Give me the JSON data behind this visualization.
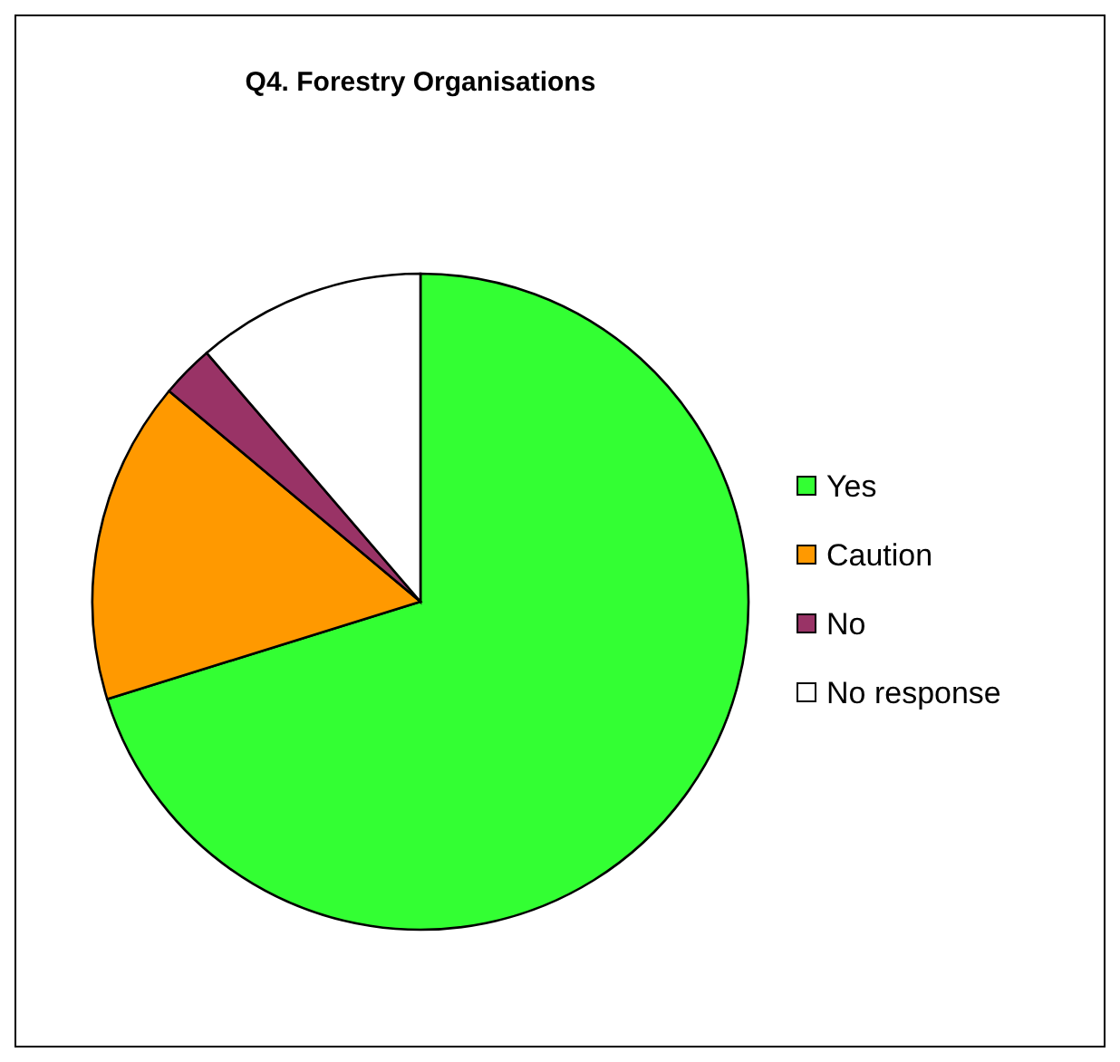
{
  "chart_data": {
    "type": "pie",
    "title": "Q4. Forestry Organisations",
    "categories": [
      "Yes",
      "Caution",
      "No",
      "No response"
    ],
    "values": [
      70.2,
      15.9,
      2.6,
      11.3
    ],
    "colors": [
      "#33ff33",
      "#ff9900",
      "#993366",
      "#ffffff"
    ],
    "legend": "right"
  }
}
